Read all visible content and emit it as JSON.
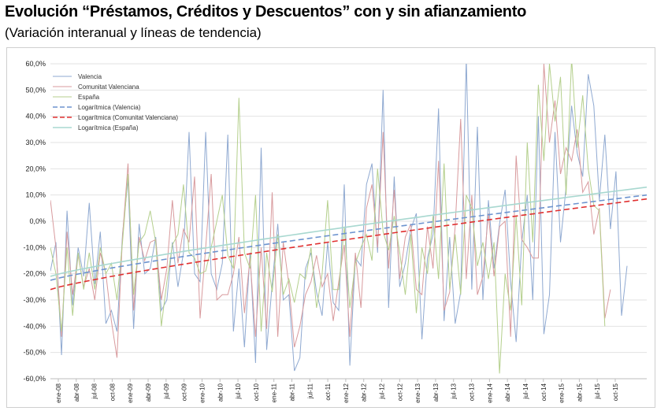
{
  "title": "Evolución “Préstamos, Créditos y Descuentos” con y sin afianzamiento",
  "subtitle": "(Variación interanual y líneas de tendencia)",
  "chart_data": {
    "type": "line",
    "ylim": [
      -60,
      60
    ],
    "ytick_labels": [
      "60,0%",
      "50,0%",
      "40,0%",
      "30,0%",
      "20,0%",
      "10,0%",
      "0,0%",
      "-10,0%",
      "-20,0%",
      "-30,0%",
      "-40,0%",
      "-50,0%",
      "-60,0%"
    ],
    "ytick_values": [
      60,
      50,
      40,
      30,
      20,
      10,
      0,
      -10,
      -20,
      -30,
      -40,
      -50,
      -60
    ],
    "xtick_labels": [
      "ene-08",
      "abr-08",
      "jul-08",
      "oct-08",
      "ene-09",
      "abr-09",
      "jul-09",
      "oct-09",
      "ene-10",
      "abr-10",
      "jul-10",
      "oct-10",
      "ene-11",
      "abr-11",
      "jul-11",
      "oct-11",
      "ene-12",
      "abr-12",
      "jul-12",
      "oct-12",
      "ene-13",
      "abr-13",
      "jul-13",
      "oct-13",
      "ene-14",
      "abr-14",
      "jul-14",
      "oct-14",
      "ene-15",
      "abr-15",
      "jul-15",
      "oct-15"
    ],
    "grid": true,
    "legend_position": "top-left",
    "series": [
      {
        "name": "Valencia",
        "color": "#8fa9d1",
        "style": "solid",
        "values": [
          -19,
          -8,
          -51,
          4,
          -32,
          -10,
          -21,
          7,
          -24,
          -4,
          -39,
          -34,
          -42,
          -5,
          16,
          -41,
          -1,
          -20,
          -18,
          -6,
          -34,
          -30,
          -8,
          -25,
          -12,
          34,
          -20,
          -23,
          34,
          -20,
          -26,
          -16,
          33,
          -42,
          -18,
          -48,
          -12,
          -54,
          28,
          -49,
          -24,
          -1,
          -30,
          -28,
          -57,
          -52,
          -18,
          -12,
          -27,
          -36,
          -8,
          -31,
          -34,
          14,
          -55,
          -14,
          -17,
          14,
          22,
          -12,
          50,
          -33,
          17,
          -25,
          -16,
          -3,
          3,
          -45,
          -14,
          -5,
          43,
          -38,
          -6,
          -39,
          -27,
          75,
          -26,
          36,
          -30,
          8,
          -18,
          -1,
          12,
          -23,
          -46,
          -8,
          10,
          -30,
          40,
          -43,
          -28,
          34,
          -8,
          13,
          44,
          26,
          17,
          56,
          44,
          8,
          33,
          -3,
          19,
          -36,
          -17
        ]
      },
      {
        "name": "Comunitat Valenciana",
        "color": "#d89a9d",
        "style": "solid",
        "values": [
          8,
          -10,
          -44,
          -4,
          -28,
          -13,
          -25,
          -18,
          -30,
          -12,
          -20,
          -38,
          -52,
          -6,
          22,
          -34,
          -6,
          -15,
          -8,
          -7,
          -30,
          -18,
          8,
          -16,
          -3,
          -8,
          17,
          -37,
          -10,
          18,
          -30,
          -28,
          -28,
          -20,
          -6,
          -35,
          -14,
          -44,
          -10,
          -41,
          11,
          -44,
          -8,
          -24,
          -48,
          -40,
          -28,
          -23,
          -13,
          -25,
          -20,
          -38,
          -23,
          -9,
          -44,
          -12,
          -33,
          5,
          14,
          -10,
          34,
          -18,
          12,
          -22,
          -6,
          -1,
          -26,
          -28,
          -2,
          -18,
          23,
          -34,
          -27,
          -2,
          39,
          -22,
          10,
          -28,
          -21,
          3,
          -21,
          -2,
          0,
          -44,
          25,
          -7,
          -10,
          -14,
          -14,
          60,
          30,
          46,
          18,
          28,
          23,
          35,
          11,
          15,
          -5,
          5,
          -37,
          -26
        ]
      },
      {
        "name": "España",
        "color": "#b4cf8c",
        "style": "solid",
        "values": [
          -10,
          -20,
          -42,
          -10,
          -36,
          -12,
          -26,
          -12,
          -26,
          -10,
          -20,
          -16,
          -30,
          -8,
          18,
          -28,
          -8,
          -5,
          4,
          -8,
          -40,
          -23,
          -9,
          -5,
          14,
          -12,
          -14,
          -20,
          -19,
          -10,
          0,
          10,
          -13,
          -18,
          47,
          -12,
          -18,
          10,
          -42,
          -12,
          -27,
          -5,
          -28,
          -22,
          -31,
          -20,
          -22,
          -10,
          -33,
          -20,
          8,
          -26,
          -26,
          -2,
          -33,
          -16,
          -10,
          -5,
          -15,
          20,
          -4,
          -11,
          2,
          -12,
          -28,
          -5,
          -35,
          -10,
          -20,
          2,
          -22,
          22,
          -26,
          -5,
          -28,
          10,
          5,
          -17,
          -8,
          -22,
          -8,
          -58,
          -20,
          -34,
          2,
          -32,
          30,
          -8,
          52,
          23,
          60,
          38,
          55,
          10,
          62,
          28,
          48,
          20,
          6,
          4,
          -40
        ]
      },
      {
        "name": "Logarítmica (Valencia)",
        "color": "#6d94cf",
        "style": "dashed",
        "trend": [
          -22.5,
          10
        ]
      },
      {
        "name": "Logarítmica (Comunitat Valenciana)",
        "color": "#e03030",
        "style": "dashed",
        "trend": [
          -26,
          8.5
        ]
      },
      {
        "name": "Logarítmica (España)",
        "color": "#a8d8d0",
        "style": "solid",
        "trend": [
          -21,
          13
        ]
      }
    ]
  }
}
